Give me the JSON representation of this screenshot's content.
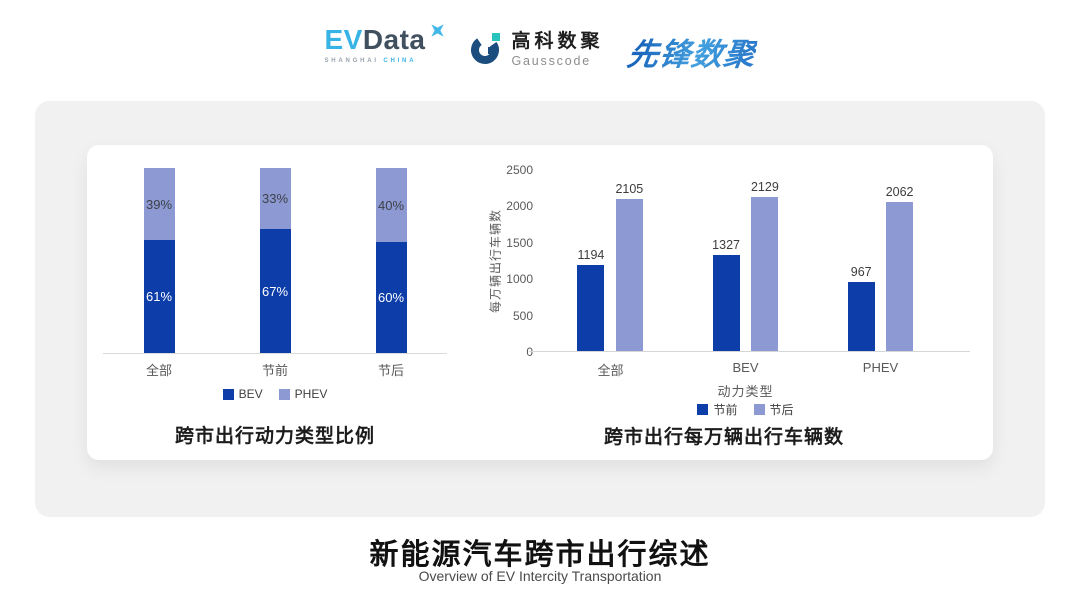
{
  "header": {
    "evdata": {
      "ev": "EV",
      "data": "Data",
      "sub_left": "SHANGHAI",
      "sub_right": "CHINA"
    },
    "gausscode": {
      "cn": "高科数聚",
      "en": "Gausscode"
    },
    "xianfeng": {
      "text": "先锋数聚"
    }
  },
  "colors": {
    "bev_dark_blue": "#0d3da8",
    "phev_light_blue": "#8d99d2",
    "evdata_blue": "#38b3e5",
    "evdata_slate": "#41505f",
    "gauss_navy": "#1b4e7e",
    "gauss_teal": "#29c3be",
    "xianfeng_blue": "#2878c8",
    "card_gray": "#f1f1f2",
    "axis_gray": "#595959"
  },
  "chart_data": [
    {
      "type": "bar",
      "variant": "stacked-percent",
      "title": "跨市出行动力类型比例",
      "categories": [
        "全部",
        "节前",
        "节后"
      ],
      "value_suffix": "%",
      "legend_position": "bottom",
      "grid": false,
      "ylim": [
        0,
        100
      ],
      "series": [
        {
          "name": "BEV",
          "color": "#0d3da8",
          "values": [
            61,
            67,
            60
          ]
        },
        {
          "name": "PHEV",
          "color": "#8d99d2",
          "values": [
            39,
            33,
            40
          ]
        }
      ]
    },
    {
      "type": "bar",
      "variant": "grouped",
      "title": "跨市出行每万辆出行车辆数",
      "xlabel": "动力类型",
      "ylabel": "每万辆出行车辆数",
      "categories": [
        "全部",
        "BEV",
        "PHEV"
      ],
      "yticks": [
        0,
        500,
        1000,
        1500,
        2000,
        2500
      ],
      "ylim": [
        0,
        2500
      ],
      "legend_position": "bottom",
      "grid": false,
      "series": [
        {
          "name": "节前",
          "color": "#0d3da8",
          "values": [
            1194,
            1327,
            967
          ]
        },
        {
          "name": "节后",
          "color": "#8d99d2",
          "values": [
            2105,
            2129,
            2062
          ]
        }
      ]
    }
  ],
  "footer": {
    "title": "新能源汽车跨市出行综述",
    "subtitle": "Overview of EV Intercity Transportation"
  }
}
